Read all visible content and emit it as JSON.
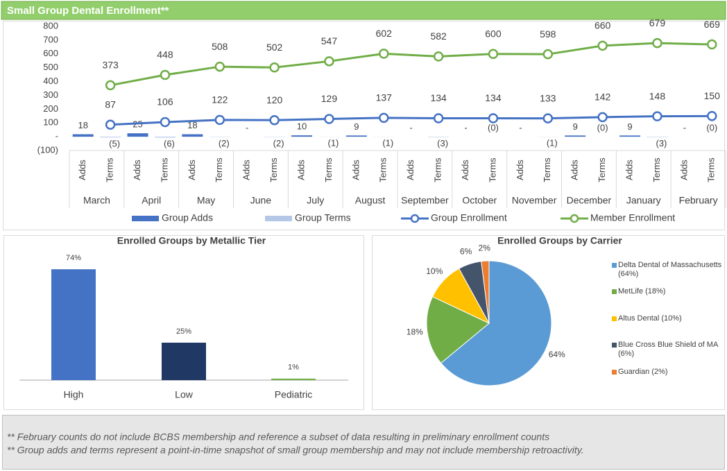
{
  "header": {
    "title": "Small Group Dental Enrollment**"
  },
  "chart_data": [
    {
      "type": "combo",
      "categories": [
        "March",
        "April",
        "May",
        "June",
        "July",
        "August",
        "September",
        "October",
        "November",
        "December",
        "January",
        "February"
      ],
      "subcategories": [
        "Adds",
        "Terms"
      ],
      "ylim": [
        -100,
        800
      ],
      "yticks": [
        {
          "value": -100,
          "label": "(100)"
        },
        {
          "value": 0,
          "label": "-"
        },
        100,
        200,
        300,
        400,
        500,
        600,
        700,
        800
      ],
      "series": [
        {
          "name": "Group Adds",
          "type": "bar",
          "color": "#4472c4",
          "values": [
            18,
            25,
            18,
            0,
            10,
            9,
            0,
            0,
            0,
            9,
            9,
            0
          ],
          "value_labels": [
            "18",
            "25",
            "18",
            "-",
            "10",
            "9",
            "-",
            "-",
            "-",
            "9",
            "9",
            "-"
          ]
        },
        {
          "name": "Group Terms",
          "type": "bar",
          "color": "#b4c7e7",
          "values": [
            -5,
            -6,
            -2,
            -2,
            -1,
            -1,
            -3,
            0,
            -1,
            0,
            -3,
            0
          ],
          "value_labels": [
            "(5)",
            "(6)",
            "(2)",
            "(2)",
            "(1)",
            "(1)",
            "(3)",
            "(0)",
            "(1)",
            "(0)",
            "(3)",
            "(0)"
          ]
        },
        {
          "name": "Group Enrollment",
          "type": "line",
          "color": "#4472c4",
          "values": [
            87,
            106,
            122,
            120,
            129,
            137,
            134,
            134,
            133,
            142,
            148,
            150
          ]
        },
        {
          "name": "Member Enrollment",
          "type": "line",
          "color": "#70ad47",
          "values": [
            373,
            448,
            508,
            502,
            547,
            602,
            582,
            600,
            598,
            660,
            679,
            669
          ]
        }
      ]
    },
    {
      "type": "bar",
      "title": "Enrolled Groups by Metallic Tier",
      "categories": [
        "High",
        "Low",
        "Pediatric"
      ],
      "values": [
        74,
        25,
        1
      ],
      "value_labels": [
        "74%",
        "25%",
        "1%"
      ],
      "colors": [
        "#4472c4",
        "#203864",
        "#70ad47"
      ]
    },
    {
      "type": "pie",
      "title": "Enrolled Groups by Carrier",
      "categories": [
        "Delta Dental of Massachusetts (64%)",
        "MetLife (18%)",
        "Altus Dental (10%)",
        "Blue Cross Blue Shield of MA (6%)",
        "Guardian (2%)"
      ],
      "values": [
        64,
        18,
        10,
        6,
        2
      ],
      "value_labels": [
        "64%",
        "18%",
        "10%",
        "6%",
        "2%"
      ],
      "colors": [
        "#5b9bd5",
        "#70ad47",
        "#ffc000",
        "#44546a",
        "#ed7d31"
      ]
    }
  ],
  "notes": [
    "** February counts do not include BCBS membership and reference a subset of data resulting in preliminary enrollment counts",
    "** Group adds and terms represent a point-in-time snapshot of small group membership and may not include membership retroactivity."
  ]
}
